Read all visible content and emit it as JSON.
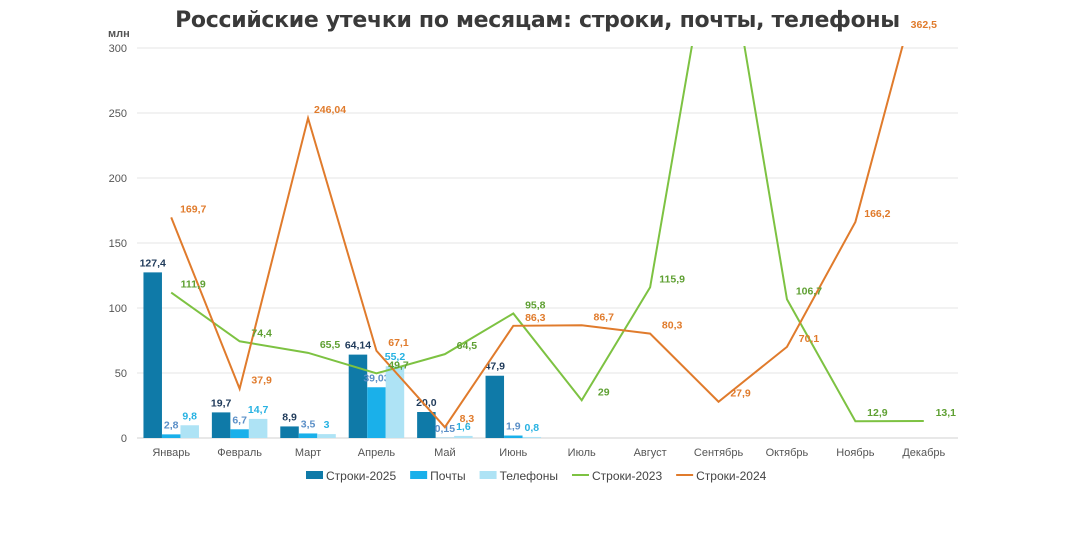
{
  "chart_data": {
    "type": "bar+line",
    "title": "Российские утечки по месяцам: строки, почты, телефоны",
    "ylabel": "млн",
    "ylim": [
      0,
      300
    ],
    "yticks": [
      0,
      50,
      100,
      150,
      200,
      250,
      300
    ],
    "grid": true,
    "legend": "bottom",
    "categories": [
      "Январь",
      "Февраль",
      "Март",
      "Апрель",
      "Май",
      "Июнь",
      "Июль",
      "Август",
      "Сентябрь",
      "Октябрь",
      "Ноябрь",
      "Декабрь"
    ],
    "series": [
      {
        "name": "Строки-2025",
        "kind": "bar",
        "color": "#0f7aa8",
        "labelColor": "#1f3a5a",
        "values": [
          127.4,
          19.7,
          8.9,
          64.14,
          20.0,
          47.9,
          null,
          null,
          null,
          null,
          null,
          null
        ],
        "labels": [
          "127,4",
          "19,7",
          "8,9",
          "64,14",
          "20,0",
          "47,9",
          "",
          "",
          "",
          "",
          "",
          ""
        ]
      },
      {
        "name": "Почты",
        "kind": "bar",
        "color": "#1ab0ea",
        "labelColor": "#5b8fc7",
        "values": [
          2.8,
          6.7,
          3.5,
          39.03,
          0.15,
          1.9,
          null,
          null,
          null,
          null,
          null,
          null
        ],
        "labels": [
          "2,8",
          "6,7",
          "3,5",
          "39,03",
          "0,15",
          "1,9",
          "",
          "",
          "",
          "",
          "",
          ""
        ]
      },
      {
        "name": "Телефоны",
        "kind": "bar",
        "color": "#aee3f5",
        "labelColor": "#27b2e2",
        "values": [
          9.8,
          14.7,
          3,
          55.2,
          1.6,
          0.8,
          null,
          null,
          null,
          null,
          null,
          null
        ],
        "labels": [
          "9,8",
          "14,7",
          "3",
          "55,2",
          "1,6",
          "0,8",
          "",
          "",
          "",
          "",
          "",
          ""
        ]
      },
      {
        "name": "Строки-2023",
        "kind": "line",
        "color": "#7dc242",
        "labelColor": "#5fa033",
        "values": [
          111.9,
          74.4,
          65.5,
          49.7,
          64.5,
          95.8,
          29,
          115.9,
          null,
          106.7,
          12.9,
          13.1
        ],
        "labels": [
          "111,9",
          "74,4",
          "65,5",
          "49,7",
          "64,5",
          "95,8",
          "29",
          "115,9",
          "",
          "106,7",
          "12,9",
          "13,1"
        ]
      },
      {
        "name": "Строки-2024",
        "kind": "line",
        "color": "#e07b2c",
        "labelColor": "#e07b2c",
        "values": [
          169.7,
          37.9,
          246.04,
          67.1,
          8.3,
          86.3,
          86.7,
          80.3,
          27.9,
          70.1,
          166.2,
          362.5
        ],
        "labels": [
          "169,7",
          "37,9",
          "246,04",
          "67,1",
          "8,3",
          "86,3",
          "86,7",
          "80,3",
          "27,9",
          "70,1",
          "166,2",
          "362,5"
        ]
      }
    ]
  }
}
